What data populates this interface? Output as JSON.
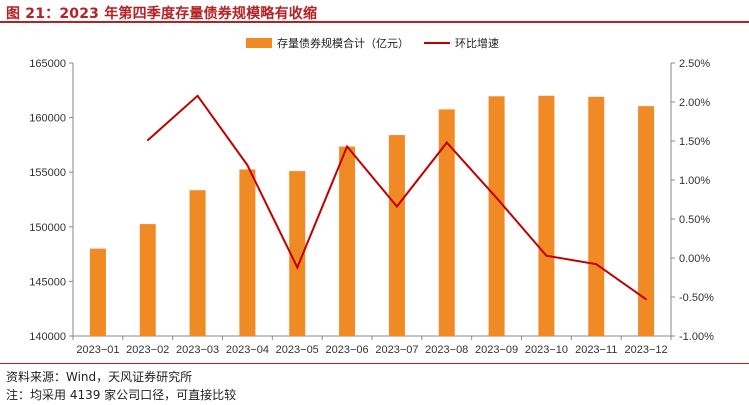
{
  "header": {
    "title": "图 21：2023 年第四季度存量债券规模略有收缩"
  },
  "footer": {
    "source": "资料来源：Wind，天风证券研究所",
    "note": "注：均采用 4139 家公司口径，可直接比较"
  },
  "chart_data": {
    "type": "bar+line",
    "categories": [
      "2023−01",
      "2023−02",
      "2023−03",
      "2023−04",
      "2023−05",
      "2023−06",
      "2023−07",
      "2023−08",
      "2023−09",
      "2023−10",
      "2023−11",
      "2023−12"
    ],
    "series": [
      {
        "name": "存量债券规模合计（亿元）",
        "type": "bar",
        "axis": "left",
        "color": "#f08a24",
        "values": [
          148000,
          150250,
          153350,
          155250,
          155100,
          157350,
          158400,
          160750,
          161950,
          162000,
          161900,
          161050
        ]
      },
      {
        "name": "环比增速",
        "type": "line",
        "axis": "right",
        "color": "#c00000",
        "values": [
          null,
          1.51,
          2.08,
          1.19,
          -0.12,
          1.43,
          0.66,
          1.48,
          0.77,
          0.03,
          -0.08,
          -0.53
        ]
      }
    ],
    "left_axis": {
      "ylim": [
        140000,
        165000
      ],
      "ticks": [
        140000,
        145000,
        150000,
        155000,
        160000,
        165000
      ],
      "tick_labels": [
        "140000",
        "145000",
        "150000",
        "155000",
        "160000",
        "165000"
      ]
    },
    "right_axis": {
      "ylim": [
        -1.0,
        2.5
      ],
      "ticks": [
        -1.0,
        -0.5,
        0.0,
        0.5,
        1.0,
        1.5,
        2.0,
        2.5
      ],
      "tick_labels": [
        "-1.00%",
        "-0.50%",
        "0.00%",
        "0.50%",
        "1.00%",
        "1.50%",
        "2.00%",
        "2.50%"
      ]
    },
    "legend_position": "top-center",
    "grid": false
  }
}
